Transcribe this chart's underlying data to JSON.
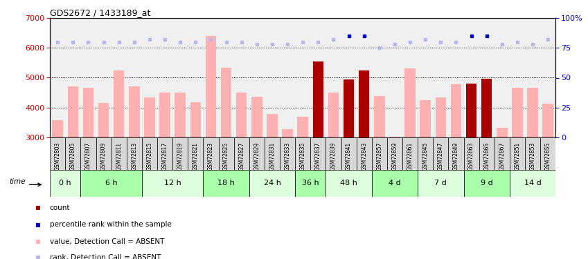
{
  "title": "GDS2672 / 1433189_at",
  "samples": [
    "GSM72803",
    "GSM72805",
    "GSM72807",
    "GSM72809",
    "GSM72811",
    "GSM72813",
    "GSM72815",
    "GSM72817",
    "GSM72819",
    "GSM72821",
    "GSM72823",
    "GSM72825",
    "GSM72827",
    "GSM72829",
    "GSM72831",
    "GSM72833",
    "GSM72835",
    "GSM72837",
    "GSM72839",
    "GSM72841",
    "GSM72843",
    "GSM72857",
    "GSM72859",
    "GSM72861",
    "GSM72845",
    "GSM72847",
    "GSM72849",
    "GSM72863",
    "GSM72865",
    "GSM72867",
    "GSM72851",
    "GSM72853",
    "GSM72855"
  ],
  "time_groups": [
    {
      "label": "0 h",
      "start": 0,
      "end": 2
    },
    {
      "label": "6 h",
      "start": 2,
      "end": 6
    },
    {
      "label": "12 h",
      "start": 6,
      "end": 10
    },
    {
      "label": "18 h",
      "start": 10,
      "end": 13
    },
    {
      "label": "24 h",
      "start": 13,
      "end": 16
    },
    {
      "label": "36 h",
      "start": 16,
      "end": 18
    },
    {
      "label": "48 h",
      "start": 18,
      "end": 21
    },
    {
      "label": "4 d",
      "start": 21,
      "end": 24
    },
    {
      "label": "7 d",
      "start": 24,
      "end": 27
    },
    {
      "label": "9 d",
      "start": 27,
      "end": 30
    },
    {
      "label": "14 d",
      "start": 30,
      "end": 33
    }
  ],
  "bar_values": [
    3570,
    4720,
    4660,
    4150,
    5250,
    4720,
    4350,
    4490,
    4490,
    4180,
    6400,
    5340,
    4490,
    4360,
    3790,
    3270,
    3680,
    5550,
    4490,
    4950,
    5240,
    4380,
    3020,
    5310,
    4240,
    4340,
    4770,
    4800,
    4960,
    3310,
    4660,
    4660,
    4120
  ],
  "bar_is_dark": [
    false,
    false,
    false,
    false,
    false,
    false,
    false,
    false,
    false,
    false,
    false,
    false,
    false,
    false,
    false,
    false,
    false,
    true,
    false,
    true,
    true,
    false,
    false,
    false,
    false,
    false,
    false,
    true,
    true,
    false,
    false,
    false,
    false
  ],
  "rank_values": [
    80,
    80,
    80,
    80,
    80,
    80,
    82,
    82,
    80,
    80,
    82,
    80,
    80,
    78,
    78,
    78,
    80,
    80,
    82,
    85,
    85,
    75,
    78,
    80,
    82,
    80,
    80,
    85,
    85,
    78,
    80,
    78,
    82
  ],
  "rank_is_dark": [
    false,
    false,
    false,
    false,
    false,
    false,
    false,
    false,
    false,
    false,
    false,
    false,
    false,
    false,
    false,
    false,
    false,
    false,
    false,
    true,
    true,
    false,
    false,
    false,
    false,
    false,
    false,
    true,
    true,
    false,
    false,
    false,
    false
  ],
  "ylim": [
    3000,
    7000
  ],
  "y_ticks": [
    3000,
    4000,
    5000,
    6000,
    7000
  ],
  "right_ticks": [
    0,
    25,
    50,
    75,
    100
  ],
  "right_ylim": [
    0,
    100
  ],
  "bg_color": "#f0f0f0",
  "bar_color_light": "#ffb0b0",
  "bar_color_dark": "#aa0000",
  "rank_color_light": "#b8b8ee",
  "rank_color_dark": "#0000cc",
  "grid_color": "black",
  "grid_linestyle": ":",
  "time_row_color1": "#ddffdd",
  "time_row_color2": "#aaffaa",
  "label_color_left": "#cc0000",
  "label_color_right": "#0000cc",
  "xlabel_bg": "#d8d8d8"
}
